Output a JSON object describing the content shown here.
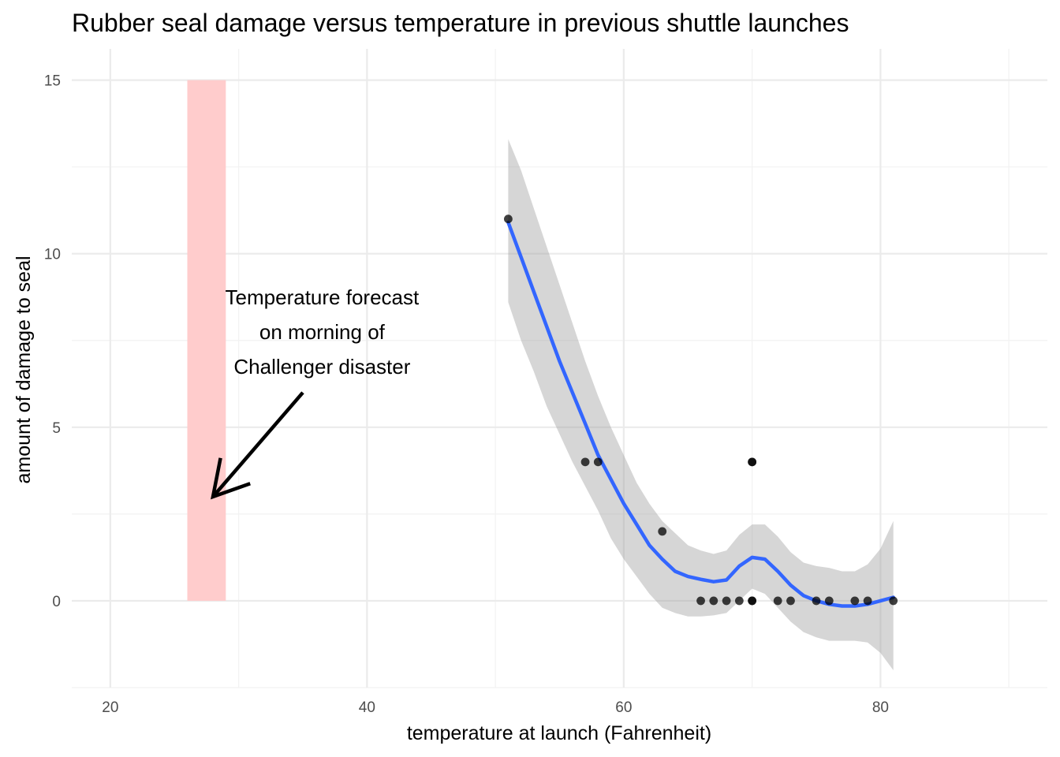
{
  "chart_data": {
    "type": "scatter",
    "title": "Rubber seal damage versus temperature in previous shuttle launches",
    "xlabel": "temperature at launch (Fahrenheit)",
    "ylabel": "amount of damage to seal",
    "xlim": [
      17,
      93
    ],
    "ylim": [
      -2.5,
      15.9
    ],
    "x_ticks": [
      20,
      40,
      60,
      80
    ],
    "y_ticks": [
      0,
      5,
      10,
      15
    ],
    "x_minor_ticks": [
      30,
      50,
      70,
      90
    ],
    "y_minor_ticks": [
      -2.5,
      2.5,
      7.5,
      12.5
    ],
    "grid": true,
    "legend": "none",
    "points": [
      {
        "x": 51,
        "y": 11
      },
      {
        "x": 57,
        "y": 4
      },
      {
        "x": 58,
        "y": 4
      },
      {
        "x": 63,
        "y": 2
      },
      {
        "x": 66,
        "y": 0
      },
      {
        "x": 67,
        "y": 0
      },
      {
        "x": 68,
        "y": 0
      },
      {
        "x": 69,
        "y": 0
      },
      {
        "x": 70,
        "y": 0
      },
      {
        "x": 70,
        "y": 0
      },
      {
        "x": 70,
        "y": 4
      },
      {
        "x": 70,
        "y": 4
      },
      {
        "x": 72,
        "y": 0
      },
      {
        "x": 73,
        "y": 0
      },
      {
        "x": 75,
        "y": 0
      },
      {
        "x": 76,
        "y": 0
      },
      {
        "x": 78,
        "y": 0
      },
      {
        "x": 79,
        "y": 0
      },
      {
        "x": 81,
        "y": 0
      }
    ],
    "smooth": {
      "method": "loess",
      "color": "#3366ff",
      "band_color": "#999999",
      "x": [
        51,
        52,
        53,
        54,
        55,
        56,
        57,
        58,
        59,
        60,
        61,
        62,
        63,
        64,
        65,
        66,
        67,
        68,
        69,
        70,
        71,
        72,
        73,
        74,
        75,
        76,
        77,
        78,
        79,
        80,
        81
      ],
      "y": [
        10.9,
        9.9,
        8.9,
        7.9,
        6.9,
        6.0,
        5.1,
        4.2,
        3.5,
        2.8,
        2.2,
        1.6,
        1.2,
        0.85,
        0.7,
        0.62,
        0.55,
        0.6,
        1.0,
        1.25,
        1.2,
        0.85,
        0.45,
        0.15,
        0.0,
        -0.1,
        -0.15,
        -0.15,
        -0.1,
        0.0,
        0.1
      ],
      "upper": [
        13.3,
        12.4,
        11.3,
        10.2,
        9.1,
        8.0,
        6.9,
        5.9,
        5.0,
        4.2,
        3.4,
        2.8,
        2.3,
        1.95,
        1.6,
        1.45,
        1.35,
        1.45,
        1.9,
        2.2,
        2.2,
        1.85,
        1.4,
        1.1,
        1.0,
        0.95,
        0.85,
        0.85,
        1.05,
        1.5,
        2.3
      ],
      "lower": [
        8.6,
        7.5,
        6.6,
        5.6,
        4.8,
        4.0,
        3.3,
        2.6,
        1.8,
        1.2,
        0.7,
        0.2,
        -0.2,
        -0.35,
        -0.45,
        -0.45,
        -0.42,
        -0.35,
        0.0,
        0.35,
        0.2,
        -0.2,
        -0.6,
        -0.9,
        -1.05,
        -1.15,
        -1.15,
        -1.15,
        -1.2,
        -1.5,
        -2.0
      ]
    },
    "highlight_region": {
      "x": [
        26,
        29
      ],
      "y": [
        0,
        15
      ],
      "color": "#ffcccc"
    },
    "annotation": {
      "lines": [
        "Temperature forecast",
        "on morning of",
        "Challenger disaster"
      ],
      "text_x": 36.5,
      "text_y": [
        8.75,
        7.75,
        6.75
      ],
      "arrow_from": [
        35,
        6
      ],
      "arrow_to": [
        28,
        3
      ]
    }
  }
}
